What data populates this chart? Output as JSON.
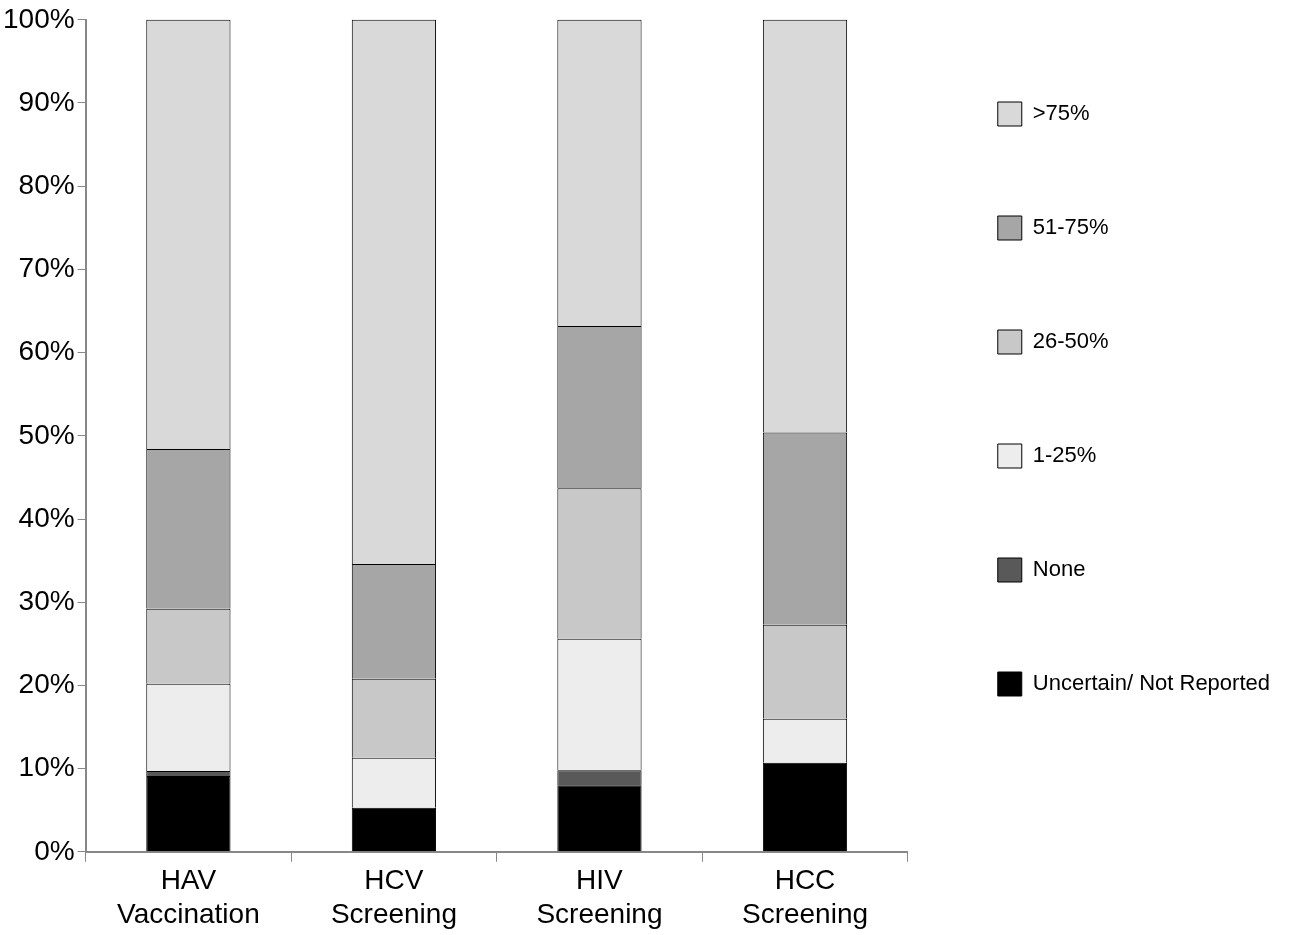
{
  "chart_data": {
    "type": "bar",
    "stacked": true,
    "categories": [
      "HAV Vaccination",
      "HCV Screening",
      "HIV Screening",
      "HCC Screening"
    ],
    "series": [
      {
        "name": "Uncertain/ Not Reported",
        "color": "#000000",
        "values": [
          9.1,
          5.3,
          8.0,
          10.7
        ]
      },
      {
        "name": "None",
        "color": "#595959",
        "values": [
          0.6,
          0,
          1.8,
          0
        ]
      },
      {
        "name": "1-25%",
        "color": "#ededed",
        "values": [
          10.5,
          6.0,
          15.8,
          5.3
        ]
      },
      {
        "name": "26-50%",
        "color": "#c8c8c8",
        "values": [
          9.0,
          9.5,
          18.1,
          11.3
        ]
      },
      {
        "name": "51-75%",
        "color": "#a6a6a6",
        "values": [
          19.2,
          13.8,
          19.5,
          23.1
        ]
      },
      {
        "name": ">75%",
        "color": "#d9d9d9",
        "values": [
          51.6,
          65.4,
          36.8,
          49.6
        ]
      }
    ],
    "ylim": [
      0,
      100
    ],
    "yticks": [
      {
        "value": 0,
        "label": "0%"
      },
      {
        "value": 10,
        "label": "10%"
      },
      {
        "value": 20,
        "label": "20%"
      },
      {
        "value": 30,
        "label": "30%"
      },
      {
        "value": 40,
        "label": "40%"
      },
      {
        "value": 50,
        "label": "50%"
      },
      {
        "value": 60,
        "label": "60%"
      },
      {
        "value": 70,
        "label": "70%"
      },
      {
        "value": 80,
        "label": "80%"
      },
      {
        "value": 90,
        "label": "90%"
      },
      {
        "value": 100,
        "label": "100%"
      }
    ],
    "grid": false,
    "legend": "right"
  }
}
